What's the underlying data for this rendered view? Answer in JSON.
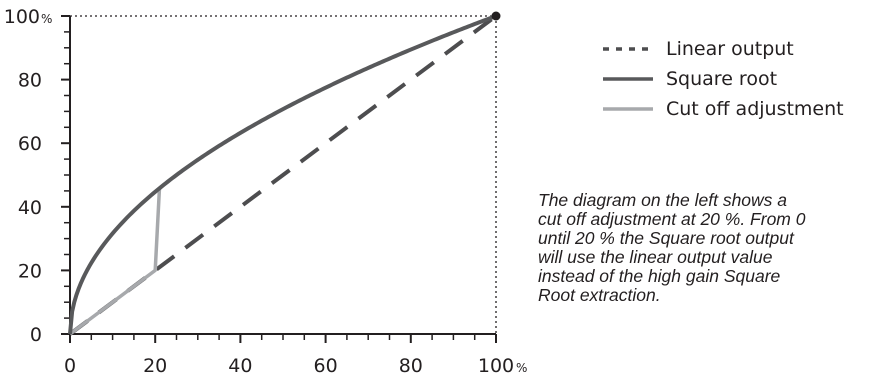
{
  "chart_data": {
    "type": "line",
    "title": "",
    "xlabel": "",
    "ylabel": "",
    "xlim": [
      0,
      100
    ],
    "ylim": [
      0,
      100
    ],
    "x_ticks": [
      "0",
      "20",
      "40",
      "60",
      "80",
      "100"
    ],
    "y_ticks": [
      "0",
      "20",
      "40",
      "60",
      "80",
      "100"
    ],
    "axis_unit": "%",
    "series": [
      {
        "name": "Linear output",
        "style": "dashed",
        "color": "#4d4d4f",
        "x": [
          0,
          100
        ],
        "y": [
          0,
          100
        ]
      },
      {
        "name": "Square root",
        "style": "solid",
        "color": "#58595b",
        "x": [
          0,
          1,
          2,
          5,
          10,
          15,
          20,
          21,
          25,
          30,
          40,
          50,
          60,
          70,
          80,
          90,
          100
        ],
        "y": [
          0,
          10,
          14.1,
          22.4,
          31.6,
          38.7,
          44.7,
          45.8,
          50,
          54.8,
          63.2,
          70.7,
          77.5,
          83.7,
          89.4,
          94.9,
          100
        ]
      },
      {
        "name": "Cut off adjustment",
        "style": "solid",
        "color": "#a7a9ac",
        "x": [
          0,
          20,
          21
        ],
        "y": [
          0,
          20,
          45.8
        ]
      }
    ],
    "legend_position": "right",
    "grid": false,
    "annotation": "The diagram on the left shows a cut off adjustment at 20 %. From 0 until 20 % the Square root output will use the linear output value instead of the high gain Square Root extraction."
  },
  "note_lines": [
    "The diagram on the left shows a",
    "cut off adjustment at 20 %. From 0",
    "until 20 % the Square root output",
    "will use the linear output value",
    "instead of the high gain Square",
    "Root extraction."
  ],
  "colors": {
    "axis": "#231f20",
    "linear": "#4d4d4f",
    "sqrt": "#58595b",
    "cutoff": "#a7a9ac"
  }
}
